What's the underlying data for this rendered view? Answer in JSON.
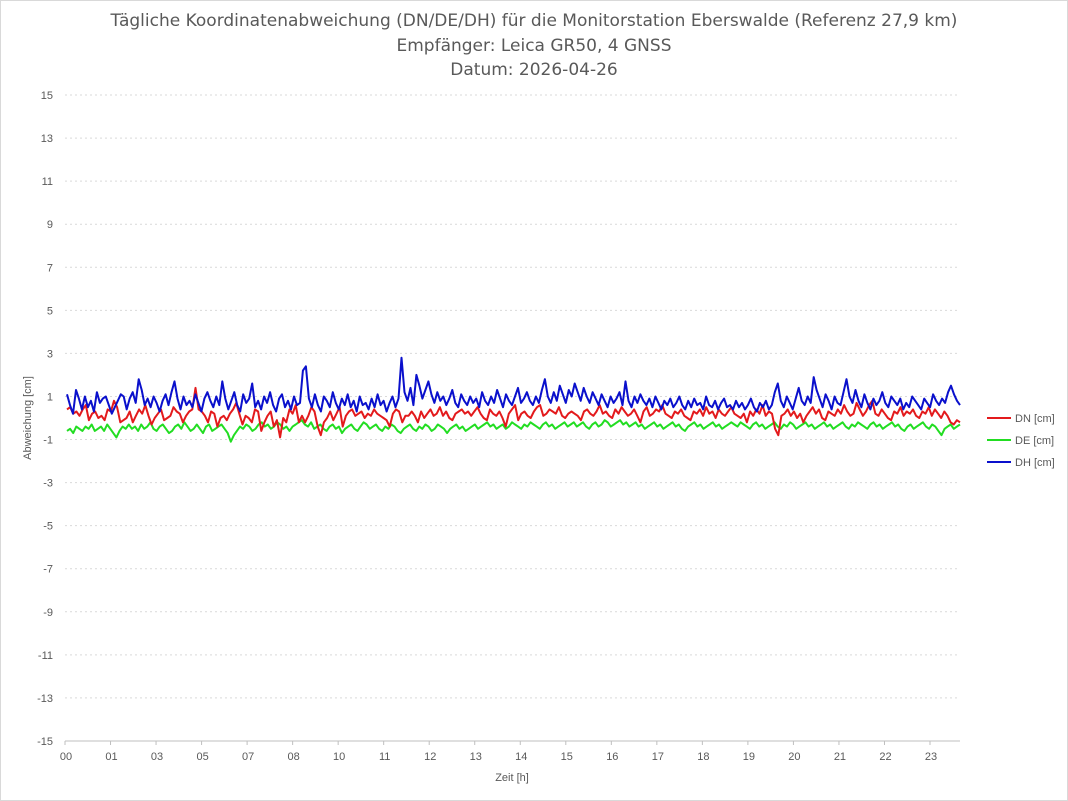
{
  "chart_data": {
    "type": "line",
    "title": "Tägliche Koordinatenabweichung (DN/DE/DH) für die Monitorstation Eberswalde (Referenz 27,9 km)",
    "subtitle": "Empfänger: Leica GR50, 4 GNSS",
    "date_line": "Datum: 2026-04-26",
    "xlabel": "Zeit [h]",
    "ylabel": "Abweichung [cm]",
    "ylim": [
      -15,
      15
    ],
    "y_ticks": [
      "15",
      "13",
      "11",
      "9",
      "7",
      "5",
      "3",
      "1",
      "-1",
      "-3",
      "-5",
      "-7",
      "-9",
      "-11",
      "-13",
      "-15"
    ],
    "x_ticks": [
      "00",
      "01",
      "03",
      "05",
      "07",
      "08",
      "10",
      "11",
      "12",
      "13",
      "14",
      "15",
      "16",
      "17",
      "18",
      "19",
      "20",
      "21",
      "22",
      "23"
    ],
    "grid": true,
    "legend_position": "right",
    "series": [
      {
        "name": "DN [cm]",
        "color": "#e31a1c",
        "values": [
          0.4,
          0.5,
          0.2,
          0.3,
          0.1,
          0.4,
          0.6,
          -0.1,
          0.2,
          0.3,
          0.0,
          0.1,
          -0.1,
          0.4,
          0.3,
          0.8,
          0.5,
          -0.2,
          -0.1,
          0.0,
          0.3,
          -0.2,
          0.1,
          0.4,
          0.2,
          0.6,
          0.1,
          -0.3,
          0.0,
          0.2,
          0.4,
          -0.1,
          0.0,
          0.1,
          0.5,
          0.3,
          0.2,
          -0.2,
          0.1,
          0.3,
          0.4,
          1.4,
          0.4,
          0.3,
          0.1,
          -0.2,
          0.3,
          0.2,
          -0.4,
          0.0,
          0.1,
          -0.1,
          0.2,
          0.4,
          0.7,
          0.2,
          -0.3,
          0.1,
          0.0,
          -0.2,
          0.4,
          0.3,
          -0.6,
          -0.2,
          0.1,
          0.3,
          -0.4,
          -0.1,
          -0.9,
          0.0,
          -0.2,
          0.4,
          0.2,
          0.6,
          -0.2,
          0.1,
          -0.2,
          0.1,
          0.5,
          0.3,
          -0.4,
          -0.8,
          -0.2,
          0.0,
          0.3,
          -0.1,
          0.2,
          0.5,
          -0.4,
          0.1,
          0.3,
          0.4,
          0.1,
          0.2,
          0.3,
          0.0,
          0.2,
          0.1,
          0.4,
          0.2,
          0.1,
          0.0,
          -0.1,
          -0.4,
          0.2,
          0.4,
          0.3,
          -0.2,
          0.1,
          0.1,
          0.3,
          0.1,
          -0.2,
          0.3,
          0.0,
          0.2,
          0.4,
          0.1,
          0.2,
          0.5,
          0.1,
          0.3,
          0.0,
          -0.1,
          0.2,
          0.3,
          0.4,
          0.2,
          0.3,
          0.1,
          0.3,
          0.5,
          0.2,
          0.0,
          -0.1,
          0.4,
          0.2,
          0.1,
          0.3,
          0.0,
          -0.4,
          0.2,
          0.4,
          0.6,
          -0.1,
          0.2,
          0.3,
          0.1,
          0.0,
          0.3,
          0.5,
          0.6,
          0.1,
          0.2,
          0.4,
          0.3,
          0.2,
          0.5,
          0.1,
          0.0,
          0.2,
          0.3,
          0.2,
          0.1,
          -0.1,
          0.3,
          0.4,
          0.2,
          0.1,
          0.3,
          0.6,
          0.2,
          0.3,
          0.1,
          0.0,
          0.4,
          0.2,
          0.5,
          0.3,
          0.1,
          0.2,
          0.4,
          0.1,
          -0.2,
          0.3,
          0.5,
          0.1,
          0.2,
          0.4,
          0.3,
          0.6,
          0.2,
          0.1,
          0.0,
          0.3,
          0.2,
          0.4,
          0.1,
          0.0,
          -0.1,
          0.3,
          0.2,
          0.4,
          0.1,
          0.5,
          0.2,
          0.3,
          0.0,
          0.4,
          0.2,
          0.1,
          0.3,
          0.5,
          0.2,
          0.1,
          0.0,
          0.2,
          -0.2,
          0.3,
          0.1,
          0.4,
          0.2,
          0.6,
          0.1,
          0.3,
          0.2,
          -0.5,
          -0.8,
          0.1,
          0.2,
          0.4,
          0.1,
          0.3,
          0.0,
          0.2,
          -0.2,
          0.1,
          0.3,
          0.5,
          0.2,
          0.4,
          0.0,
          -0.1,
          0.3,
          0.2,
          0.1,
          0.4,
          0.2,
          0.6,
          0.3,
          0.1,
          0.2,
          0.7,
          0.4,
          0.1,
          0.3,
          0.6,
          0.8,
          0.2,
          0.1,
          0.4,
          0.2,
          0.0,
          -0.1,
          0.3,
          0.2,
          0.5,
          0.1,
          0.3,
          0.2,
          0.4,
          0.1,
          0.0,
          0.3,
          0.2,
          0.5,
          0.1,
          0.4,
          0.2,
          0.0,
          0.3,
          0.1,
          -0.2,
          -0.3,
          -0.1,
          -0.2
        ]
      },
      {
        "name": "DE [cm]",
        "color": "#22dd22",
        "values": [
          -0.6,
          -0.5,
          -0.7,
          -0.4,
          -0.5,
          -0.6,
          -0.4,
          -0.5,
          -0.3,
          -0.6,
          -0.5,
          -0.4,
          -0.6,
          -0.3,
          -0.5,
          -0.7,
          -0.9,
          -0.6,
          -0.4,
          -0.5,
          -0.3,
          -0.5,
          -0.4,
          -0.6,
          -0.3,
          -0.5,
          -0.4,
          -0.2,
          -0.5,
          -0.6,
          -0.4,
          -0.3,
          -0.5,
          -0.7,
          -0.6,
          -0.4,
          -0.3,
          -0.5,
          -0.2,
          -0.4,
          -0.6,
          -0.5,
          -0.3,
          -0.5,
          -0.7,
          -0.4,
          -0.3,
          -0.6,
          -0.5,
          -0.4,
          -0.3,
          -0.5,
          -0.7,
          -1.1,
          -0.8,
          -0.6,
          -0.4,
          -0.5,
          -0.3,
          -0.4,
          -0.6,
          -0.5,
          -0.3,
          -0.2,
          -0.4,
          -0.3,
          -0.5,
          -0.4,
          -0.2,
          -0.3,
          -0.5,
          -0.4,
          -0.6,
          -0.4,
          -0.3,
          -0.2,
          -0.1,
          -0.3,
          -0.4,
          -0.2,
          -0.5,
          -0.4,
          -0.3,
          -0.5,
          -0.6,
          -0.4,
          -0.3,
          -0.5,
          -0.4,
          -0.7,
          -0.5,
          -0.4,
          -0.3,
          -0.5,
          -0.6,
          -0.4,
          -0.2,
          -0.3,
          -0.5,
          -0.4,
          -0.3,
          -0.5,
          -0.6,
          -0.4,
          -0.5,
          -0.3,
          -0.4,
          -0.6,
          -0.7,
          -0.5,
          -0.4,
          -0.3,
          -0.5,
          -0.6,
          -0.4,
          -0.5,
          -0.3,
          -0.4,
          -0.6,
          -0.5,
          -0.3,
          -0.4,
          -0.5,
          -0.7,
          -0.5,
          -0.4,
          -0.3,
          -0.5,
          -0.4,
          -0.6,
          -0.5,
          -0.4,
          -0.3,
          -0.5,
          -0.4,
          -0.3,
          -0.2,
          -0.4,
          -0.3,
          -0.5,
          -0.4,
          -0.3,
          -0.5,
          -0.4,
          -0.2,
          -0.3,
          -0.4,
          -0.5,
          -0.3,
          -0.4,
          -0.2,
          -0.3,
          -0.4,
          -0.5,
          -0.3,
          -0.2,
          -0.4,
          -0.3,
          -0.5,
          -0.4,
          -0.3,
          -0.2,
          -0.4,
          -0.3,
          -0.2,
          -0.4,
          -0.3,
          -0.2,
          -0.4,
          -0.5,
          -0.3,
          -0.2,
          -0.4,
          -0.3,
          -0.1,
          -0.2,
          -0.4,
          -0.3,
          -0.2,
          -0.1,
          -0.3,
          -0.2,
          -0.4,
          -0.3,
          -0.2,
          -0.4,
          -0.3,
          -0.5,
          -0.4,
          -0.3,
          -0.2,
          -0.4,
          -0.3,
          -0.5,
          -0.4,
          -0.3,
          -0.2,
          -0.4,
          -0.3,
          -0.5,
          -0.6,
          -0.4,
          -0.3,
          -0.2,
          -0.4,
          -0.3,
          -0.5,
          -0.4,
          -0.3,
          -0.2,
          -0.4,
          -0.3,
          -0.5,
          -0.4,
          -0.3,
          -0.2,
          -0.3,
          -0.4,
          -0.2,
          -0.3,
          -0.4,
          -0.5,
          -0.3,
          -0.2,
          -0.4,
          -0.3,
          -0.5,
          -0.4,
          -0.3,
          -0.2,
          -0.4,
          -0.5,
          -0.3,
          -0.4,
          -0.2,
          -0.3,
          -0.5,
          -0.4,
          -0.3,
          -0.2,
          -0.4,
          -0.3,
          -0.5,
          -0.4,
          -0.3,
          -0.2,
          -0.4,
          -0.3,
          -0.5,
          -0.4,
          -0.3,
          -0.2,
          -0.4,
          -0.5,
          -0.3,
          -0.4,
          -0.2,
          -0.3,
          -0.4,
          -0.5,
          -0.3,
          -0.2,
          -0.4,
          -0.3,
          -0.5,
          -0.4,
          -0.3,
          -0.2,
          -0.4,
          -0.3,
          -0.5,
          -0.6,
          -0.4,
          -0.3,
          -0.5,
          -0.4,
          -0.3,
          -0.2,
          -0.4,
          -0.5,
          -0.3,
          -0.4,
          -0.6,
          -0.8,
          -0.5,
          -0.4,
          -0.3,
          -0.5,
          -0.4,
          -0.3
        ]
      },
      {
        "name": "DH [cm]",
        "color": "#0a10cc",
        "values": [
          1.1,
          0.6,
          0.2,
          1.3,
          0.9,
          0.4,
          1.0,
          0.5,
          0.8,
          0.3,
          1.2,
          0.7,
          0.9,
          1.0,
          0.6,
          0.2,
          0.5,
          0.8,
          1.1,
          1.0,
          0.4,
          0.9,
          1.2,
          0.7,
          1.8,
          1.3,
          0.6,
          0.9,
          0.5,
          1.0,
          0.7,
          0.3,
          0.8,
          1.1,
          0.6,
          1.2,
          1.7,
          0.9,
          0.4,
          1.0,
          0.6,
          0.8,
          0.5,
          1.1,
          0.7,
          0.3,
          0.9,
          1.2,
          0.8,
          0.5,
          1.0,
          0.6,
          1.7,
          0.9,
          0.4,
          0.8,
          1.2,
          0.6,
          0.3,
          1.1,
          0.7,
          0.9,
          1.6,
          0.5,
          0.8,
          0.4,
          1.0,
          0.7,
          1.2,
          0.6,
          0.3,
          0.9,
          1.1,
          0.5,
          0.8,
          0.4,
          1.0,
          0.6,
          0.7,
          2.2,
          2.4,
          0.9,
          0.5,
          1.1,
          0.6,
          0.3,
          1.0,
          0.8,
          0.5,
          1.2,
          0.7,
          0.4,
          0.9,
          0.6,
          1.1,
          0.5,
          0.8,
          0.3,
          1.0,
          0.6,
          0.7,
          0.4,
          0.9,
          0.5,
          1.1,
          0.6,
          0.8,
          0.3,
          0.7,
          1.0,
          0.5,
          0.9,
          2.8,
          1.2,
          0.8,
          1.4,
          0.6,
          2.0,
          1.5,
          0.9,
          1.3,
          1.7,
          1.1,
          0.7,
          1.2,
          0.8,
          1.0,
          0.6,
          0.9,
          1.3,
          0.7,
          0.5,
          1.1,
          0.8,
          0.6,
          1.0,
          0.7,
          0.9,
          0.5,
          1.2,
          0.8,
          0.6,
          1.0,
          0.7,
          1.3,
          0.9,
          0.5,
          1.1,
          0.8,
          0.6,
          1.0,
          1.4,
          0.7,
          0.9,
          1.2,
          0.8,
          0.6,
          1.0,
          0.7,
          1.3,
          1.8,
          1.0,
          0.7,
          1.2,
          0.8,
          1.5,
          1.1,
          0.7,
          1.3,
          1.0,
          1.6,
          1.2,
          0.8,
          1.4,
          1.0,
          0.7,
          1.2,
          0.9,
          0.6,
          1.1,
          0.8,
          0.5,
          1.0,
          0.7,
          0.9,
          1.2,
          0.6,
          1.7,
          0.8,
          0.5,
          1.0,
          0.7,
          1.1,
          0.8,
          0.6,
          0.9,
          0.5,
          1.0,
          0.7,
          0.4,
          0.8,
          0.6,
          0.9,
          0.5,
          0.7,
          1.0,
          0.6,
          0.4,
          0.8,
          0.5,
          0.9,
          0.6,
          0.7,
          0.4,
          1.0,
          0.6,
          0.5,
          0.8,
          0.4,
          0.7,
          0.9,
          0.5,
          0.6,
          0.4,
          0.8,
          0.5,
          0.7,
          0.4,
          0.6,
          0.9,
          0.5,
          0.3,
          0.7,
          0.5,
          0.8,
          0.4,
          0.6,
          1.2,
          1.6,
          0.8,
          0.5,
          1.0,
          0.7,
          0.4,
          0.9,
          1.4,
          0.8,
          0.6,
          1.0,
          0.7,
          1.9,
          1.3,
          0.9,
          0.5,
          1.1,
          0.8,
          0.4,
          1.0,
          0.7,
          0.6,
          1.2,
          1.8,
          1.0,
          0.7,
          1.3,
          0.8,
          0.5,
          1.1,
          0.7,
          0.4,
          0.9,
          0.6,
          0.8,
          1.2,
          0.7,
          0.5,
          1.0,
          0.8,
          0.6,
          0.9,
          0.4,
          0.7,
          0.5,
          1.0,
          0.8,
          0.6,
          0.4,
          0.9,
          0.7,
          0.5,
          1.1,
          0.8,
          0.6,
          0.9,
          0.7,
          1.2,
          1.5,
          1.1,
          0.8,
          0.6
        ]
      }
    ]
  }
}
